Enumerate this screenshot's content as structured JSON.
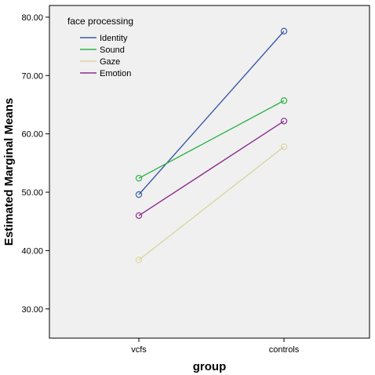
{
  "chart_data": {
    "type": "line",
    "categories": [
      "vcfs",
      "controls"
    ],
    "xlabel": "group",
    "ylabel": "Estimated Marginal Means",
    "ylim": [
      25,
      82
    ],
    "yticks": [
      "30.00",
      "40.00",
      "50.00",
      "60.00",
      "70.00",
      "80.00"
    ],
    "legend_title": "face processing",
    "legend_position": "top-left",
    "grid": false,
    "background": "#f0f0f0",
    "series": [
      {
        "name": "Identity",
        "color": "#3d5ba9",
        "values": [
          49.6,
          77.6
        ]
      },
      {
        "name": "Sound",
        "color": "#2eb34a",
        "values": [
          52.4,
          65.7
        ]
      },
      {
        "name": "Gaze",
        "color": "#d9d6a4",
        "values": [
          38.4,
          57.8
        ]
      },
      {
        "name": "Emotion",
        "color": "#8b2f8c",
        "values": [
          46.0,
          62.2
        ]
      }
    ]
  }
}
